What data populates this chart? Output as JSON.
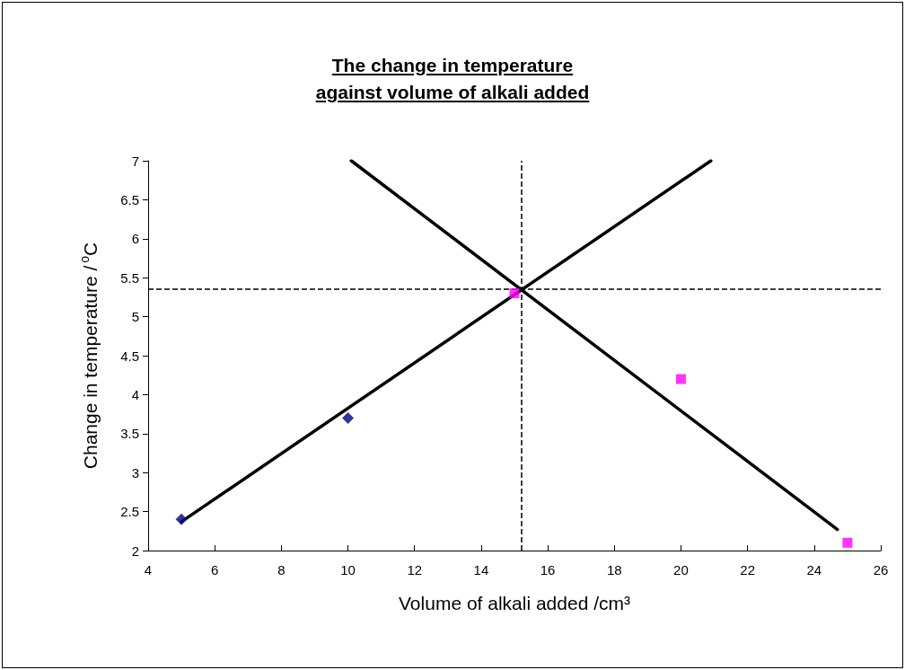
{
  "chart_data": {
    "type": "scatter",
    "title": "The change in temperature\nagainst volume of alkali added",
    "xlabel": "Volume of alkali added /cm³",
    "ylabel": "Change in temperature /$^{o}$C",
    "series": [
      {
        "color": "#000080",
        "marker": "diamond",
        "x": [
          5,
          10
        ],
        "values": [
          2.4,
          3.7
        ]
      },
      {
        "color": "#ff00ff",
        "marker": "square",
        "x": [
          15,
          20,
          25
        ],
        "values": [
          5.3,
          4.2,
          2.1
        ]
      },
      {
        "type": "line",
        "color": "#000000",
        "marker": "none",
        "line_style": "solid",
        "x": [
          5,
          20.9
        ],
        "values": [
          2.37,
          7
        ]
      },
      {
        "type": "line",
        "color": "#000000",
        "marker": "none",
        "line_style": "solid",
        "x": [
          10.1,
          24.7
        ],
        "values": [
          7,
          2.27
        ]
      }
    ],
    "ref_lines": [
      {
        "axis": "x",
        "value": 15.2,
        "color": "#000000",
        "line_style": "dashed"
      },
      {
        "axis": "y",
        "value": 5.35,
        "color": "#000000",
        "line_style": "dashed"
      }
    ],
    "xlim": [
      4,
      26
    ],
    "xticks": [
      4,
      6,
      8,
      10,
      12,
      14,
      16,
      18,
      20,
      22,
      24,
      26
    ],
    "ylim": [
      2,
      7
    ],
    "yticks": [
      2,
      2.5,
      3,
      3.5,
      4,
      4.5,
      5,
      5.5,
      6,
      6.5,
      7
    ],
    "grid": false
  }
}
